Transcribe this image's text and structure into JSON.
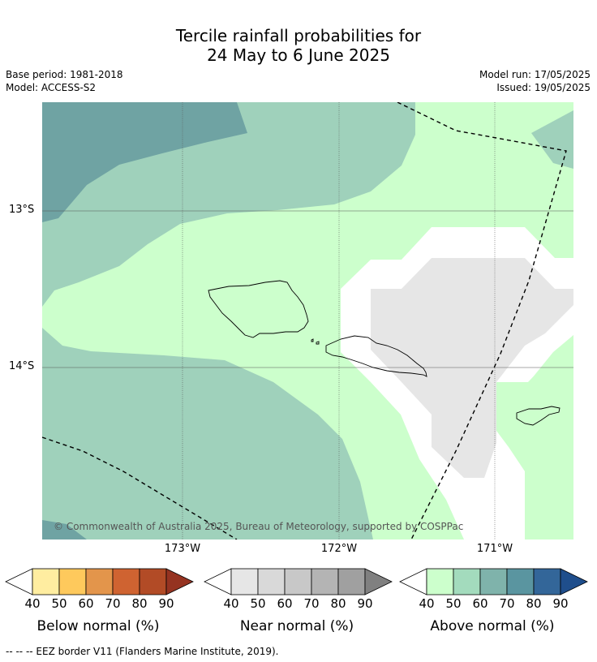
{
  "header": {
    "title_line1": "Tercile rainfall probabilities for",
    "title_line2": "24 May to 6 June 2025",
    "base_period": "Base period: 1981-2018",
    "model": "Model: ACCESS-S2",
    "model_run": "Model run: 17/05/2025",
    "issued": "Issued: 19/05/2025"
  },
  "map": {
    "lat_labels": [
      "13°S",
      "14°S"
    ],
    "lon_labels": [
      "173°W",
      "172°W",
      "171°W"
    ],
    "copyright": "© Commonwealth of Australia 2025, Bureau of Meteorology, supported by COSPPac",
    "colors": {
      "above_40": "#ccffcc",
      "above_50": "#9fd1bb",
      "above_60": "#6fa3a3",
      "near_40": "#e6e6e6",
      "white": "#ffffff"
    }
  },
  "legends": [
    {
      "title": "Below normal (%)",
      "ticks": [
        "40",
        "50",
        "60",
        "70",
        "80",
        "90"
      ],
      "colors": [
        "#ffeda0",
        "#fec95c",
        "#e3954b",
        "#cf6331",
        "#b24b26",
        "#953321"
      ]
    },
    {
      "title": "Near normal (%)",
      "ticks": [
        "40",
        "50",
        "60",
        "70",
        "80",
        "90"
      ],
      "colors": [
        "#e6e6e6",
        "#d9d9d9",
        "#c8c8c8",
        "#b4b4b4",
        "#a0a0a0",
        "#808080"
      ]
    },
    {
      "title": "Above normal (%)",
      "ticks": [
        "40",
        "50",
        "60",
        "70",
        "80",
        "90"
      ],
      "colors": [
        "#ccffcc",
        "#a3dbbd",
        "#7fb3ab",
        "#5a95a0",
        "#336699",
        "#1f4e8c"
      ]
    }
  ],
  "footnote": "--  --  -- EEZ border V11 (Flanders Marine Institute, 2019)."
}
